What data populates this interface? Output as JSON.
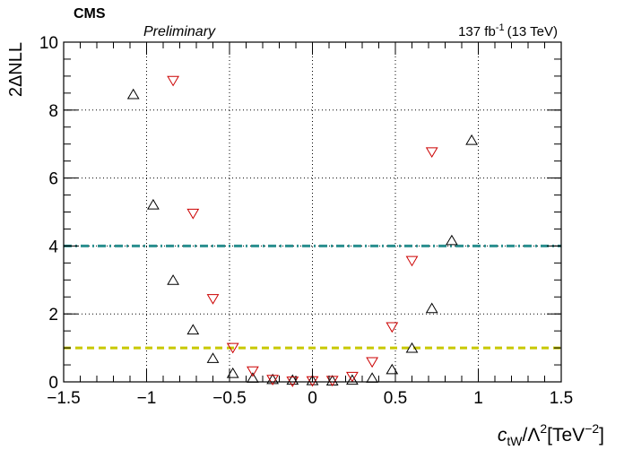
{
  "chart_data": {
    "type": "scatter",
    "experiment_label": "CMS",
    "status_label": "Preliminary",
    "lumi_label": {
      "value": "137 fb",
      "exponent": "-1",
      "suffix": "(13 TeV)"
    },
    "ylabel": "2ΔNLL",
    "xlabel": {
      "symbol": "c",
      "subscript": "tW",
      "middle": "/Λ",
      "middle_sup": "2",
      "unit_open": "[TeV",
      "unit_sup": "−2",
      "unit_close": "]"
    },
    "xlim": [
      -1.5,
      1.5
    ],
    "ylim": [
      0,
      10
    ],
    "x_ticks": [
      {
        "v": -1.5,
        "label": "−1.5"
      },
      {
        "v": -1.0,
        "label": "−1"
      },
      {
        "v": -0.5,
        "label": "−0.5"
      },
      {
        "v": 0.0,
        "label": "0"
      },
      {
        "v": 0.5,
        "label": "0.5"
      },
      {
        "v": 1.0,
        "label": "1"
      },
      {
        "v": 1.5,
        "label": "1.5"
      }
    ],
    "y_ticks": [
      {
        "v": 0,
        "label": "0"
      },
      {
        "v": 2,
        "label": "2"
      },
      {
        "v": 4,
        "label": "4"
      },
      {
        "v": 6,
        "label": "6"
      },
      {
        "v": 8,
        "label": "8"
      },
      {
        "v": 10,
        "label": "10"
      }
    ],
    "grid": true,
    "reference_lines": [
      {
        "y": 4,
        "style": "dash-dot",
        "color": "#2a8f8f"
      },
      {
        "y": 1,
        "style": "dashed",
        "color": "#c8c800"
      }
    ],
    "series": [
      {
        "marker": "triangle-up",
        "color": "#000000",
        "points": [
          {
            "x": -1.08,
            "y": 8.45
          },
          {
            "x": -0.96,
            "y": 5.2
          },
          {
            "x": -0.84,
            "y": 2.98
          },
          {
            "x": -0.72,
            "y": 1.52
          },
          {
            "x": -0.6,
            "y": 0.68
          },
          {
            "x": -0.48,
            "y": 0.24
          },
          {
            "x": -0.36,
            "y": 0.1
          },
          {
            "x": -0.24,
            "y": 0.06
          },
          {
            "x": -0.12,
            "y": 0.04
          },
          {
            "x": 0.0,
            "y": 0.03
          },
          {
            "x": 0.12,
            "y": 0.02
          },
          {
            "x": 0.24,
            "y": 0.04
          },
          {
            "x": 0.36,
            "y": 0.1
          },
          {
            "x": 0.48,
            "y": 0.35
          },
          {
            "x": 0.6,
            "y": 0.98
          },
          {
            "x": 0.72,
            "y": 2.15
          },
          {
            "x": 0.84,
            "y": 4.15
          },
          {
            "x": 0.96,
            "y": 7.1
          }
        ]
      },
      {
        "marker": "triangle-down",
        "color": "#cc0000",
        "points": [
          {
            "x": -0.84,
            "y": 8.88
          },
          {
            "x": -0.72,
            "y": 4.97
          },
          {
            "x": -0.6,
            "y": 2.46
          },
          {
            "x": -0.48,
            "y": 1.02
          },
          {
            "x": -0.36,
            "y": 0.33
          },
          {
            "x": -0.24,
            "y": 0.08
          },
          {
            "x": -0.12,
            "y": 0.03
          },
          {
            "x": 0.0,
            "y": 0.04
          },
          {
            "x": 0.12,
            "y": 0.05
          },
          {
            "x": 0.24,
            "y": 0.17
          },
          {
            "x": 0.36,
            "y": 0.6
          },
          {
            "x": 0.48,
            "y": 1.63
          },
          {
            "x": 0.6,
            "y": 3.58
          },
          {
            "x": 0.72,
            "y": 6.78
          }
        ]
      }
    ]
  }
}
